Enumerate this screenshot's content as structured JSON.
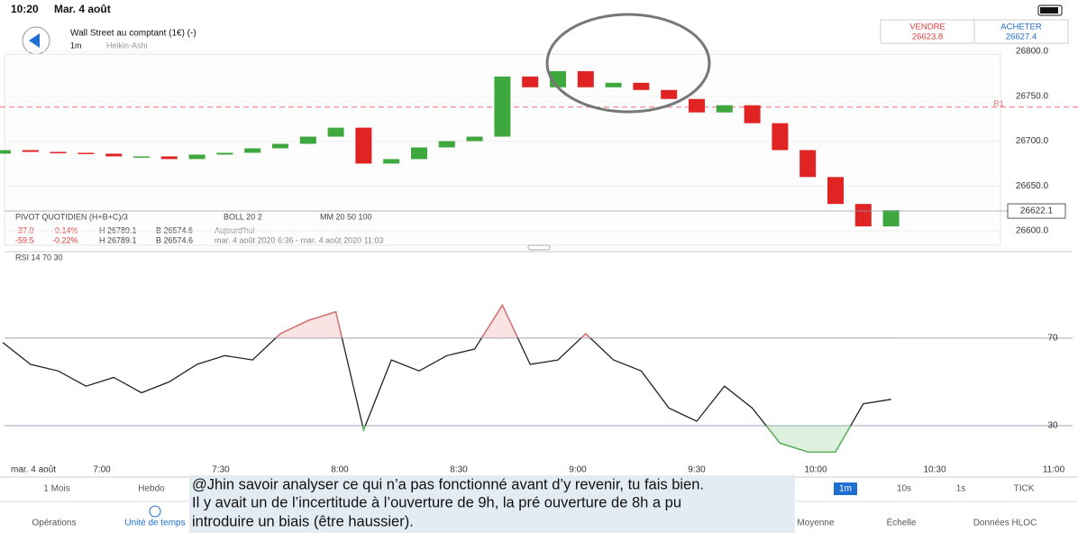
{
  "status_bar": {
    "time": "10:20",
    "date": "Mar. 4 août"
  },
  "header": {
    "instrument": "Wall Street au comptant (1€) (-)",
    "timeframe": "1m",
    "chart_style": "Heikin-Ashi"
  },
  "quote": {
    "sell_label": "VENDRE",
    "sell_price": "26623.8",
    "buy_label": "ACHETER",
    "buy_price": "26627.4"
  },
  "indicators": {
    "row1": [
      "PIVOT QUOTIDIEN (H+B+C)/3",
      "BOLL 20 2",
      "MM 20 50 100"
    ],
    "row2": [
      "-37.0",
      "-0.14%",
      "H 26789.1",
      "B 26574.6",
      "Aujourd'hui"
    ],
    "row3": [
      "-59.5",
      "-0.22%",
      "H 26789.1",
      "B 26574.6",
      "mar. 4 août 2020 6:36 - mar. 4 août 2020 11:03"
    ]
  },
  "chart_data": [
    {
      "type": "candlestick",
      "x": [
        395,
        402,
        409,
        416,
        423,
        430,
        437,
        444,
        451,
        458,
        465,
        472,
        479,
        486,
        493,
        500,
        507,
        514,
        521,
        528,
        535,
        542,
        549,
        556,
        563,
        570,
        577,
        584,
        591,
        598,
        605,
        612,
        619
      ],
      "open": [
        26686,
        26690,
        26688,
        26687,
        26686,
        26683,
        26683,
        26680,
        26685,
        26687,
        26692,
        26697,
        26705,
        26715,
        26675,
        26680,
        26693,
        26700,
        26705,
        26772,
        26760,
        26778,
        26760,
        26765,
        26757,
        26747,
        26732,
        26740,
        26720,
        26690,
        26660,
        26630,
        26605
      ],
      "close": [
        26690,
        26688,
        26687,
        26686,
        26683,
        26683,
        26680,
        26685,
        26687,
        26692,
        26697,
        26705,
        26715,
        26675,
        26680,
        26693,
        26700,
        26705,
        26772,
        26760,
        26778,
        26760,
        26765,
        26757,
        26747,
        26732,
        26740,
        26720,
        26690,
        26660,
        26630,
        26605,
        26623
      ],
      "up_color": "#3ea83e",
      "down_color": "#e02424",
      "xlim": [
        395,
        660
      ],
      "ylim": [
        26600,
        26800
      ],
      "yticks": [
        {
          "value": 26600,
          "label": "26600.0"
        },
        {
          "value": 26650,
          "label": "26650.0"
        },
        {
          "value": 26700,
          "label": "26700.0"
        },
        {
          "value": 26750,
          "label": "26750.0"
        },
        {
          "value": 26800,
          "label": "26800.0"
        }
      ],
      "reference_lines": [
        {
          "label": "R1",
          "value": 26738,
          "color": "#e57373"
        }
      ],
      "last_price": 26622.1
    },
    {
      "type": "line",
      "title": "RSI 14 70 30",
      "x_label": "mar. 4 août",
      "x": [
        395,
        402,
        409,
        416,
        423,
        430,
        437,
        444,
        451,
        458,
        465,
        472,
        479,
        486,
        493,
        500,
        507,
        514,
        521,
        528,
        535,
        542,
        549,
        556,
        563,
        570,
        577,
        584,
        591,
        598,
        605,
        612,
        619
      ],
      "values": [
        68,
        58,
        55,
        48,
        52,
        45,
        50,
        58,
        62,
        60,
        72,
        78,
        82,
        28,
        60,
        55,
        62,
        65,
        85,
        58,
        60,
        72,
        60,
        55,
        38,
        32,
        48,
        38,
        22,
        18,
        18,
        40,
        42
      ],
      "color": "#222222",
      "overbought_color": "#e57373",
      "oversold_color": "#5cb85c",
      "xlim": [
        395,
        660
      ],
      "ylim": [
        10,
        100
      ],
      "xticks": [
        {
          "value": 420,
          "label": "7:00"
        },
        {
          "value": 450,
          "label": "7:30"
        },
        {
          "value": 480,
          "label": "8:00"
        },
        {
          "value": 510,
          "label": "8:30"
        },
        {
          "value": 540,
          "label": "9:00"
        },
        {
          "value": 570,
          "label": "9:30"
        },
        {
          "value": 600,
          "label": "10:00"
        },
        {
          "value": 630,
          "label": "10:30"
        },
        {
          "value": 660,
          "label": "11:00"
        }
      ],
      "yticks": [
        30,
        70
      ]
    }
  ],
  "timeframes": [
    "1 Mois",
    "Hebdo",
    "1m",
    "10s",
    "1s",
    "TICK"
  ],
  "toolbar": [
    "Opérations",
    "Unité de temps",
    "Moyenne",
    "Échelle",
    "Données HLOC"
  ],
  "comment": [
    "@Jhin savoir analyser ce qui n’a pas fonctionné avant d’y revenir, tu fais bien.",
    "Il y avait un de l’incertitude à l’ouverture de 9h, la pré ouverture de 8h a pu",
    "introduire un biais (être haussier)."
  ]
}
